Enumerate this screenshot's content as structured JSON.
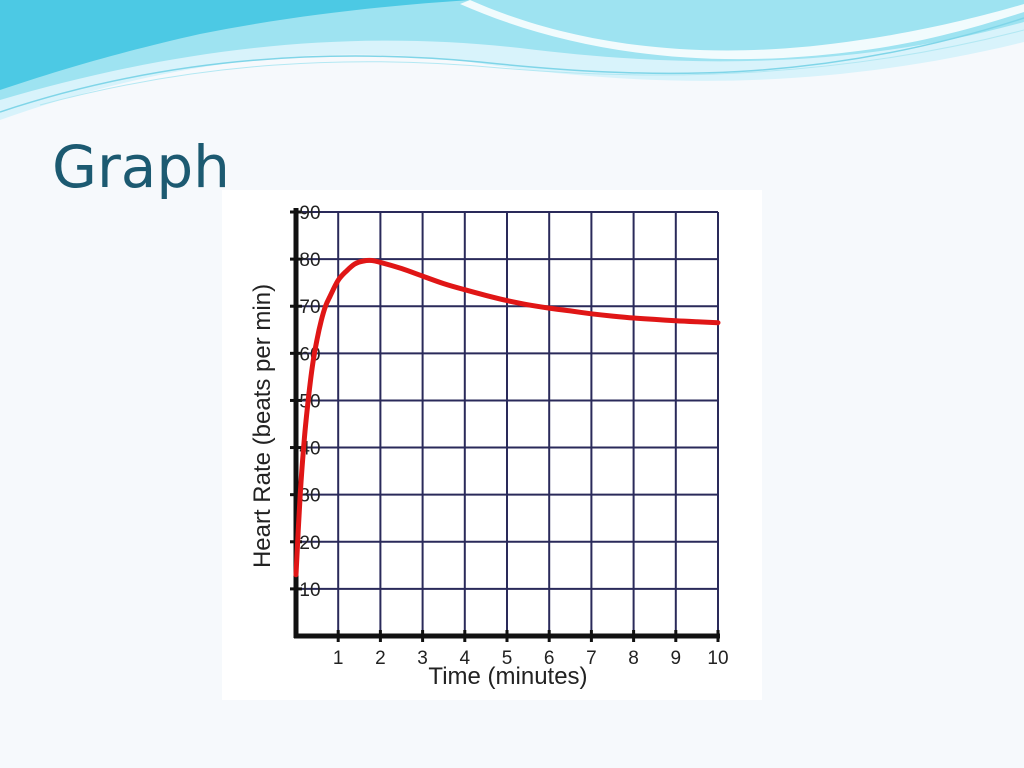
{
  "slide": {
    "title": "Graph",
    "colors": {
      "title": "#1c5a71",
      "background": "#f6f9fc",
      "wave_light": "#d8f3fb",
      "wave_mid": "#9ee3f1",
      "wave_dark": "#4cc9e4"
    }
  },
  "chart_data": {
    "type": "line",
    "title": "",
    "xlabel": "Time (minutes)",
    "ylabel": "Heart Rate (beats per min)",
    "xlim": [
      0,
      10
    ],
    "ylim": [
      0,
      90
    ],
    "x_ticks": [
      "1",
      "2",
      "3",
      "4",
      "5",
      "6",
      "7",
      "8",
      "9",
      "10"
    ],
    "y_ticks": [
      "10",
      "20",
      "30",
      "40",
      "50",
      "60",
      "70",
      "80",
      "90"
    ],
    "grid": true,
    "legend": "none",
    "series": [
      {
        "color": "#e01616",
        "x": [
          0,
          0.1,
          0.2,
          0.3,
          0.4,
          0.5,
          0.6,
          0.7,
          0.8,
          1.0,
          1.2,
          1.4,
          1.6,
          1.8,
          2.0,
          2.5,
          3.0,
          3.5,
          4.0,
          4.5,
          5.0,
          5.5,
          6.0,
          6.5,
          7.0,
          7.5,
          8.0,
          8.5,
          9.0,
          9.5,
          10.0
        ],
        "y": [
          13,
          30,
          42,
          51,
          58,
          63,
          67,
          70,
          72,
          75.5,
          77.5,
          79,
          79.6,
          79.7,
          79.3,
          78,
          76.4,
          74.8,
          73.5,
          72.3,
          71.2,
          70.3,
          69.6,
          69,
          68.4,
          67.9,
          67.5,
          67.2,
          66.9,
          66.7,
          66.5
        ]
      }
    ]
  }
}
